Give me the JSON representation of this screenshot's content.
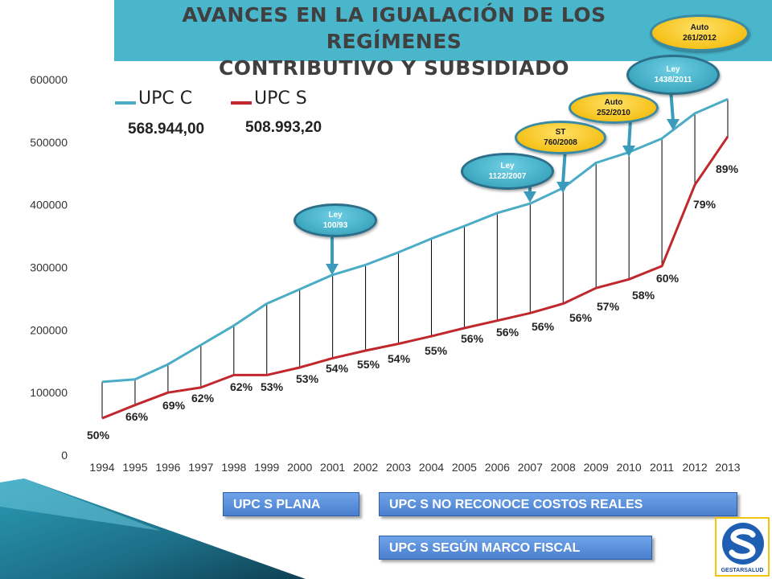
{
  "title": {
    "line1": "AVANCES EN LA IGUALACIÓN DE LOS REGÍMENES",
    "line2": "CONTRIBUTIVO Y SUBSIDIADO"
  },
  "legend": {
    "upc_c_label": "UPC C",
    "upc_s_label": "UPC S",
    "upc_c_value": "568.944,00",
    "upc_s_value": "508.993,20"
  },
  "bubbles": {
    "ley_100": {
      "line1": "Ley",
      "line2": "100/93"
    },
    "ley_1122": {
      "line1": "Ley",
      "line2": "1122/2007"
    },
    "st_760": {
      "line1": "ST",
      "line2": "760/2008"
    },
    "auto_252": {
      "line1": "Auto",
      "line2": "252/2010"
    },
    "ley_1438": {
      "line1": "Ley",
      "line2": "1438/2011"
    },
    "auto_261": {
      "line1": "Auto",
      "line2": "261/2012"
    }
  },
  "buttons": {
    "plana": "UPC S PLANA",
    "no_reconoce": "UPC S NO RECONOCE COSTOS REALES",
    "marco_fiscal": "UPC S SEGÚN MARCO FISCAL"
  },
  "logo": {
    "text": "GESTARSALUD"
  },
  "colors": {
    "upc_c": "#4bacc6",
    "upc_s": "#c0282d",
    "header": "#49b6cc",
    "button": "#5a8ede"
  },
  "chart_data": {
    "type": "line",
    "x": [
      "1994",
      "1995",
      "1996",
      "1997",
      "1998",
      "1999",
      "2000",
      "2001",
      "2002",
      "2003",
      "2004",
      "2005",
      "2006",
      "2007",
      "2008",
      "2009",
      "2010",
      "2011",
      "2012",
      "2013"
    ],
    "series": [
      {
        "name": "UPC C",
        "values": [
          117000,
          121000,
          145000,
          176000,
          207000,
          242000,
          265000,
          288000,
          304000,
          324000,
          346000,
          366000,
          387000,
          402000,
          427000,
          467000,
          484000,
          506000,
          546000,
          568944
        ]
      },
      {
        "name": "UPC S",
        "values": [
          59000,
          80000,
          100000,
          108000,
          128000,
          128000,
          140000,
          155000,
          167000,
          178000,
          190000,
          203000,
          215000,
          227000,
          242000,
          267000,
          281000,
          302000,
          432000,
          508993
        ]
      }
    ],
    "ratio_labels": [
      "50%",
      "66%",
      "69%",
      "62%",
      "62%",
      "53%",
      "53%",
      "54%",
      "55%",
      "54%",
      "55%",
      "56%",
      "56%",
      "56%",
      "56%",
      "57%",
      "58%",
      "60%",
      "79%",
      "89%"
    ],
    "y_ticks": [
      0,
      100000,
      200000,
      300000,
      400000,
      500000,
      600000
    ],
    "ylim": [
      0,
      600000
    ],
    "grid": false,
    "legend_position": "top-left"
  }
}
